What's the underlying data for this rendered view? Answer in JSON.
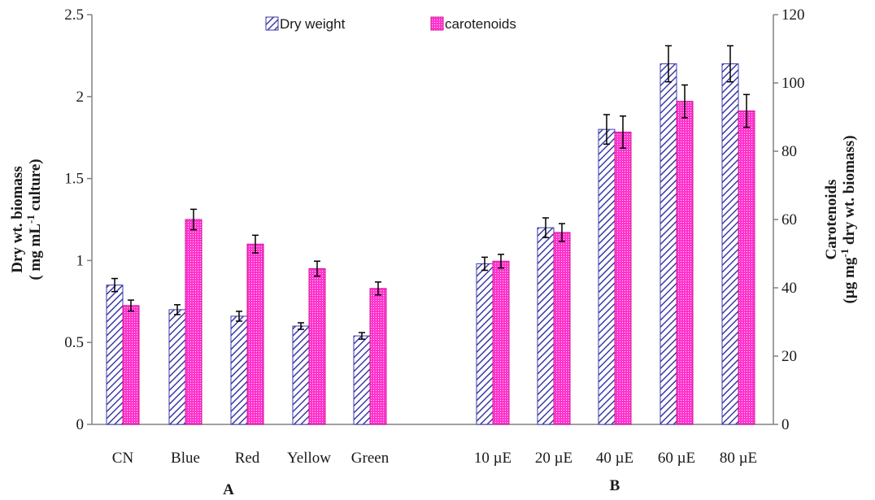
{
  "chart_data": {
    "type": "bar",
    "groups": [
      {
        "label": "A",
        "categories": [
          "CN",
          "Blue",
          "Red",
          "Yellow",
          "Green"
        ]
      },
      {
        "label": "B",
        "categories": [
          "10 µE",
          "20 µE",
          "40 µE",
          "60 µE",
          "80 µE"
        ]
      }
    ],
    "categories": [
      "CN",
      "Blue",
      "Red",
      "Yellow",
      "Green",
      "10 µE",
      "20 µE",
      "40 µE",
      "60 µE",
      "80 µE"
    ],
    "series": [
      {
        "name": "Dry weight",
        "axis": "left",
        "color": "#3a3aa8",
        "values": [
          0.85,
          0.7,
          0.66,
          0.6,
          0.54,
          0.98,
          1.2,
          1.8,
          2.2,
          2.2
        ],
        "errors": [
          0.04,
          0.03,
          0.03,
          0.02,
          0.02,
          0.04,
          0.06,
          0.09,
          0.11,
          0.11
        ]
      },
      {
        "name": "carotenoids",
        "axis": "right",
        "color": "#ff33cc",
        "values": [
          34.8,
          60.0,
          52.8,
          45.6,
          39.8,
          47.8,
          56.2,
          85.6,
          94.6,
          91.8
        ],
        "errors": [
          1.6,
          3.0,
          2.6,
          2.2,
          1.9,
          2.0,
          2.6,
          4.7,
          4.8,
          4.8
        ]
      }
    ],
    "y_left": {
      "label_line1": "Dry wt. biomass",
      "label_line2_pre": "( mg mL",
      "label_line2_sup": "-1",
      "label_line2_post": " culture)",
      "ylim": [
        0,
        2.5
      ],
      "ticks": [
        "0",
        "0.5",
        "1",
        "1.5",
        "2",
        "2.5"
      ]
    },
    "y_right": {
      "label_line1": "Carotenoids",
      "label_line2_pre": "(µg mg",
      "label_line2_sup": "-1",
      "label_line2_post": " dry wt. biomass)",
      "ylim": [
        0,
        120
      ],
      "ticks": [
        "0",
        "20",
        "40",
        "60",
        "80",
        "100",
        "120"
      ]
    },
    "legend": {
      "position": "top-center"
    },
    "grid": false
  }
}
